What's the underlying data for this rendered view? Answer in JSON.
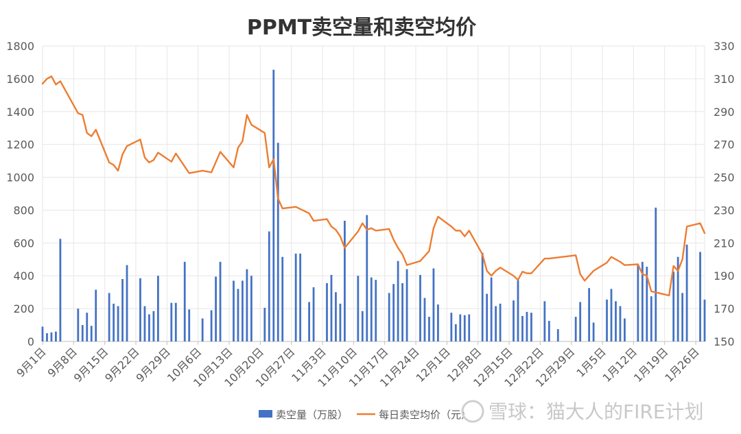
{
  "watermark": "雪球：猫大人的FIRE计划",
  "chart_data": {
    "type": "bar+line",
    "title": "PPMT卖空量和卖空均价",
    "y_left": {
      "lim": [
        0,
        1800
      ],
      "ticks": [
        "0",
        "200",
        "400",
        "600",
        "800",
        "1000",
        "1200",
        "1400",
        "1600",
        "1800"
      ]
    },
    "y_right": {
      "lim": [
        150,
        330
      ],
      "ticks": [
        "150",
        "170",
        "190",
        "210",
        "230",
        "250",
        "270",
        "290",
        "310",
        "330"
      ]
    },
    "x_range": [
      "2024-09-01",
      "2025-01-28"
    ],
    "x_ticks": [
      "9月1日",
      "9月8日",
      "9月15日",
      "9月22日",
      "9月29日",
      "10月6日",
      "10月13日",
      "10月20日",
      "10月27日",
      "11月3日",
      "11月10日",
      "11月17日",
      "11月24日",
      "12月1日",
      "12月8日",
      "12月15日",
      "12月22日",
      "12月29日",
      "1月5日",
      "1月12日",
      "1月19日",
      "1月26日"
    ],
    "legend": [
      "卖空量（万股）",
      "每日卖空均价（元）"
    ],
    "series": [
      {
        "name": "卖空量（万股）",
        "type": "bar",
        "axis": "left",
        "color": "#4472C4",
        "points": [
          [
            "2024-09-01",
            90
          ],
          [
            "2024-09-02",
            50
          ],
          [
            "2024-09-03",
            55
          ],
          [
            "2024-09-04",
            60
          ],
          [
            "2024-09-05",
            625
          ],
          [
            "2024-09-09",
            200
          ],
          [
            "2024-09-10",
            100
          ],
          [
            "2024-09-11",
            175
          ],
          [
            "2024-09-12",
            95
          ],
          [
            "2024-09-13",
            315
          ],
          [
            "2024-09-16",
            295
          ],
          [
            "2024-09-17",
            230
          ],
          [
            "2024-09-18",
            215
          ],
          [
            "2024-09-19",
            380
          ],
          [
            "2024-09-20",
            465
          ],
          [
            "2024-09-23",
            385
          ],
          [
            "2024-09-24",
            215
          ],
          [
            "2024-09-25",
            165
          ],
          [
            "2024-09-26",
            185
          ],
          [
            "2024-09-27",
            400
          ],
          [
            "2024-09-30",
            235
          ],
          [
            "2024-10-01",
            235
          ],
          [
            "2024-10-03",
            485
          ],
          [
            "2024-10-04",
            195
          ],
          [
            "2024-10-07",
            140
          ],
          [
            "2024-10-09",
            190
          ],
          [
            "2024-10-10",
            395
          ],
          [
            "2024-10-11",
            485
          ],
          [
            "2024-10-14",
            370
          ],
          [
            "2024-10-15",
            320
          ],
          [
            "2024-10-16",
            370
          ],
          [
            "2024-10-17",
            440
          ],
          [
            "2024-10-18",
            400
          ],
          [
            "2024-10-21",
            205
          ],
          [
            "2024-10-22",
            670
          ],
          [
            "2024-10-23",
            1655
          ],
          [
            "2024-10-24",
            1210
          ],
          [
            "2024-10-25",
            515
          ],
          [
            "2024-10-28",
            535
          ],
          [
            "2024-10-29",
            535
          ],
          [
            "2024-10-31",
            240
          ],
          [
            "2024-11-01",
            330
          ],
          [
            "2024-11-04",
            355
          ],
          [
            "2024-11-05",
            405
          ],
          [
            "2024-11-06",
            300
          ],
          [
            "2024-11-07",
            230
          ],
          [
            "2024-11-08",
            735
          ],
          [
            "2024-11-11",
            400
          ],
          [
            "2024-11-12",
            185
          ],
          [
            "2024-11-13",
            770
          ],
          [
            "2024-11-14",
            390
          ],
          [
            "2024-11-15",
            375
          ],
          [
            "2024-11-18",
            295
          ],
          [
            "2024-11-19",
            350
          ],
          [
            "2024-11-20",
            490
          ],
          [
            "2024-11-21",
            355
          ],
          [
            "2024-11-22",
            440
          ],
          [
            "2024-11-25",
            405
          ],
          [
            "2024-11-26",
            265
          ],
          [
            "2024-11-27",
            150
          ],
          [
            "2024-11-28",
            445
          ],
          [
            "2024-11-29",
            225
          ],
          [
            "2024-12-02",
            175
          ],
          [
            "2024-12-03",
            105
          ],
          [
            "2024-12-04",
            165
          ],
          [
            "2024-12-05",
            160
          ],
          [
            "2024-12-06",
            165
          ],
          [
            "2024-12-09",
            540
          ],
          [
            "2024-12-10",
            290
          ],
          [
            "2024-12-11",
            390
          ],
          [
            "2024-12-12",
            215
          ],
          [
            "2024-12-13",
            230
          ],
          [
            "2024-12-16",
            250
          ],
          [
            "2024-12-17",
            375
          ],
          [
            "2024-12-18",
            155
          ],
          [
            "2024-12-19",
            180
          ],
          [
            "2024-12-20",
            175
          ],
          [
            "2024-12-23",
            245
          ],
          [
            "2024-12-24",
            125
          ],
          [
            "2024-12-26",
            75
          ],
          [
            "2024-12-30",
            150
          ],
          [
            "2024-12-31",
            240
          ],
          [
            "2025-01-02",
            325
          ],
          [
            "2025-01-03",
            115
          ],
          [
            "2025-01-06",
            255
          ],
          [
            "2025-01-07",
            320
          ],
          [
            "2025-01-08",
            245
          ],
          [
            "2025-01-09",
            215
          ],
          [
            "2025-01-10",
            140
          ],
          [
            "2025-01-13",
            470
          ],
          [
            "2025-01-14",
            485
          ],
          [
            "2025-01-15",
            455
          ],
          [
            "2025-01-16",
            275
          ],
          [
            "2025-01-17",
            815
          ],
          [
            "2025-01-21",
            425
          ],
          [
            "2025-01-22",
            515
          ],
          [
            "2025-01-23",
            295
          ],
          [
            "2025-01-24",
            590
          ],
          [
            "2025-01-27",
            545
          ],
          [
            "2025-01-28",
            255
          ]
        ]
      },
      {
        "name": "每日卖空均价（元）",
        "type": "line",
        "axis": "right",
        "color": "#ED7D31",
        "points": [
          [
            "2024-09-01",
            307
          ],
          [
            "2024-09-02",
            310
          ],
          [
            "2024-09-03",
            311.5
          ],
          [
            "2024-09-04",
            306.5
          ],
          [
            "2024-09-05",
            308.5
          ],
          [
            "2024-09-09",
            289
          ],
          [
            "2024-09-10",
            288
          ],
          [
            "2024-09-11",
            277
          ],
          [
            "2024-09-12",
            275
          ],
          [
            "2024-09-13",
            279
          ],
          [
            "2024-09-16",
            259
          ],
          [
            "2024-09-17",
            257.5
          ],
          [
            "2024-09-18",
            254
          ],
          [
            "2024-09-19",
            264
          ],
          [
            "2024-09-20",
            269
          ],
          [
            "2024-09-23",
            273
          ],
          [
            "2024-09-24",
            262
          ],
          [
            "2024-09-25",
            259
          ],
          [
            "2024-09-26",
            260.5
          ],
          [
            "2024-09-27",
            265
          ],
          [
            "2024-09-30",
            259.5
          ],
          [
            "2024-10-01",
            264.5
          ],
          [
            "2024-10-04",
            252.5
          ],
          [
            "2024-10-07",
            254
          ],
          [
            "2024-10-09",
            253
          ],
          [
            "2024-10-11",
            265.5
          ],
          [
            "2024-10-14",
            256
          ],
          [
            "2024-10-15",
            268
          ],
          [
            "2024-10-16",
            272
          ],
          [
            "2024-10-17",
            288
          ],
          [
            "2024-10-18",
            282
          ],
          [
            "2024-10-21",
            277
          ],
          [
            "2024-10-22",
            256
          ],
          [
            "2024-10-23",
            261
          ],
          [
            "2024-10-24",
            237
          ],
          [
            "2024-10-25",
            231
          ],
          [
            "2024-10-28",
            232
          ],
          [
            "2024-10-31",
            228
          ],
          [
            "2024-11-01",
            223.5
          ],
          [
            "2024-11-04",
            224.5
          ],
          [
            "2024-11-05",
            220
          ],
          [
            "2024-11-06",
            218
          ],
          [
            "2024-11-07",
            214
          ],
          [
            "2024-11-08",
            207
          ],
          [
            "2024-11-11",
            217
          ],
          [
            "2024-11-12",
            222
          ],
          [
            "2024-11-13",
            218
          ],
          [
            "2024-11-14",
            219
          ],
          [
            "2024-11-15",
            217.5
          ],
          [
            "2024-11-18",
            218.5
          ],
          [
            "2024-11-19",
            212
          ],
          [
            "2024-11-20",
            207
          ],
          [
            "2024-11-21",
            203
          ],
          [
            "2024-11-22",
            196.5
          ],
          [
            "2024-11-25",
            199
          ],
          [
            "2024-11-26",
            202
          ],
          [
            "2024-11-27",
            205
          ],
          [
            "2024-11-28",
            219
          ],
          [
            "2024-11-29",
            226
          ],
          [
            "2024-12-02",
            220
          ],
          [
            "2024-12-03",
            217.5
          ],
          [
            "2024-12-04",
            217.5
          ],
          [
            "2024-12-05",
            214
          ],
          [
            "2024-12-06",
            217.5
          ],
          [
            "2024-12-09",
            203
          ],
          [
            "2024-12-10",
            193
          ],
          [
            "2024-12-11",
            190
          ],
          [
            "2024-12-12",
            193
          ],
          [
            "2024-12-13",
            195
          ],
          [
            "2024-12-16",
            190
          ],
          [
            "2024-12-17",
            187.5
          ],
          [
            "2024-12-18",
            192.5
          ],
          [
            "2024-12-19",
            191.5
          ],
          [
            "2024-12-20",
            191.5
          ],
          [
            "2024-12-23",
            200.5
          ],
          [
            "2024-12-24",
            200.5
          ],
          [
            "2024-12-30",
            202.5
          ],
          [
            "2024-12-31",
            191
          ],
          [
            "2025-01-01",
            187
          ],
          [
            "2025-01-03",
            193
          ],
          [
            "2025-01-06",
            198
          ],
          [
            "2025-01-07",
            201.5
          ],
          [
            "2025-01-08",
            200
          ],
          [
            "2025-01-09",
            198.5
          ],
          [
            "2025-01-10",
            196.5
          ],
          [
            "2025-01-13",
            197
          ],
          [
            "2025-01-14",
            191
          ],
          [
            "2025-01-15",
            190
          ],
          [
            "2025-01-16",
            180.5
          ],
          [
            "2025-01-20",
            178
          ],
          [
            "2025-01-21",
            196
          ],
          [
            "2025-01-22",
            193
          ],
          [
            "2025-01-23",
            200
          ],
          [
            "2025-01-24",
            220
          ],
          [
            "2025-01-27",
            222
          ],
          [
            "2025-01-28",
            216
          ]
        ]
      }
    ]
  }
}
